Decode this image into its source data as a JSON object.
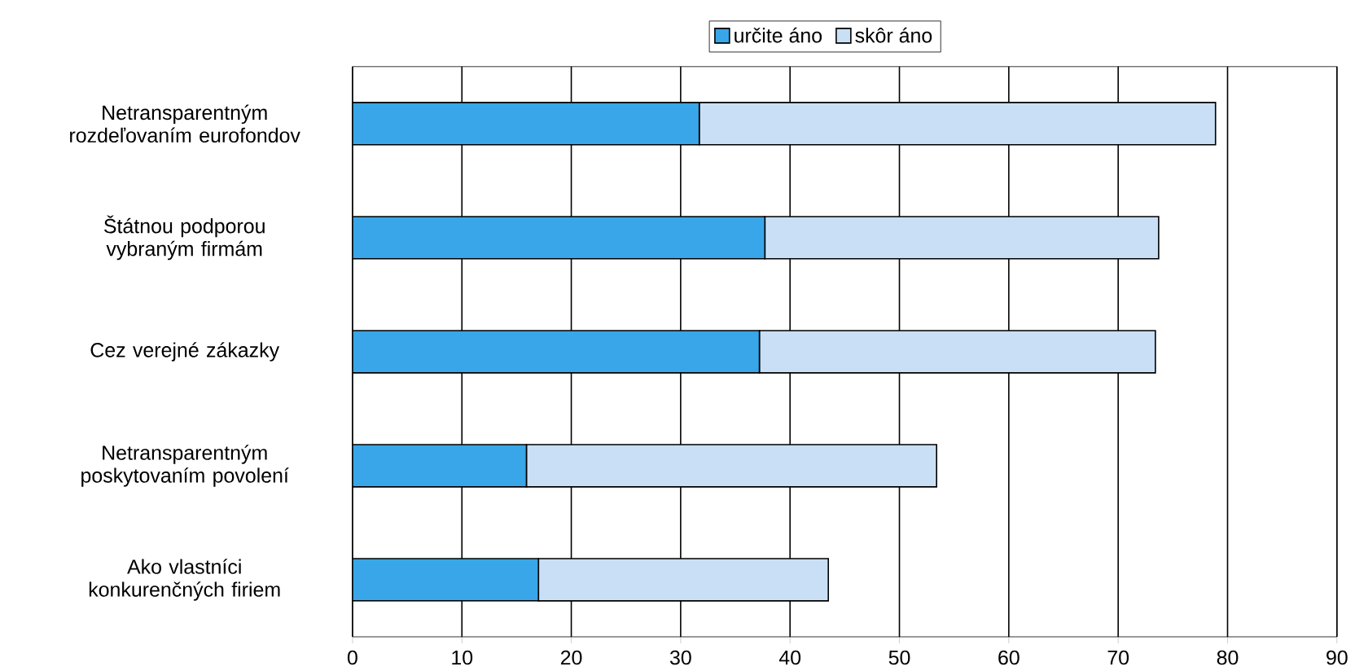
{
  "chart_data": {
    "type": "bar",
    "orientation": "horizontal",
    "stacked": true,
    "categories": [
      "Netransparentným rozdeľovaním eurofondov",
      "Štátnou podporou vybraným firmám",
      "Cez verejné zákazky",
      "Netransparentným poskytovaním povolení",
      "Ako vlastníci konkurenčných firiem"
    ],
    "series": [
      {
        "name": "určite áno",
        "color": "#38a6e8",
        "values": [
          31.7,
          37.7,
          37.2,
          15.9,
          17.0
        ]
      },
      {
        "name": "skôr áno",
        "color": "#c9dff5",
        "values": [
          47.2,
          36.0,
          36.2,
          37.5,
          26.5
        ]
      }
    ],
    "xlim": [
      0,
      90
    ],
    "xticks": [
      0,
      10,
      20,
      30,
      40,
      50,
      60,
      70,
      80,
      90
    ],
    "grid": "x",
    "legend": "top"
  }
}
